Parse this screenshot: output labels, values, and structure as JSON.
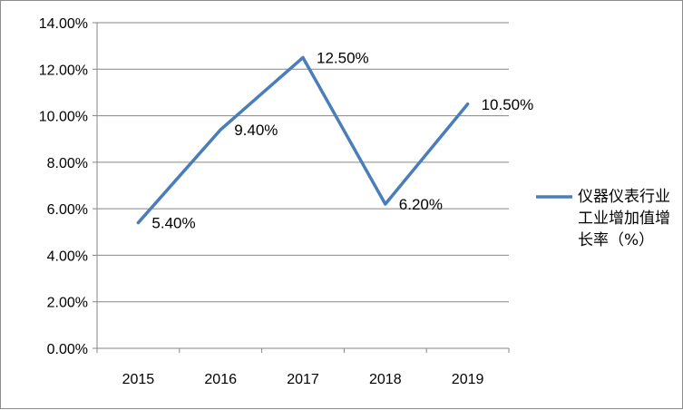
{
  "chart_data": {
    "type": "line",
    "categories": [
      "2015",
      "2016",
      "2017",
      "2018",
      "2019"
    ],
    "series": [
      {
        "name": "仪器仪表行业工业增加值增长率（%）",
        "values": [
          5.4,
          9.4,
          12.5,
          6.2,
          10.5
        ],
        "labels": [
          "5.40%",
          "9.40%",
          "12.50%",
          "6.20%",
          "10.50%"
        ]
      }
    ],
    "ylim": [
      0,
      14
    ],
    "yticks": [
      "0.00%",
      "2.00%",
      "4.00%",
      "6.00%",
      "8.00%",
      "10.00%",
      "12.00%",
      "14.00%"
    ],
    "grid": true,
    "legend_position": "right",
    "line_color": "#4a7ebb"
  }
}
